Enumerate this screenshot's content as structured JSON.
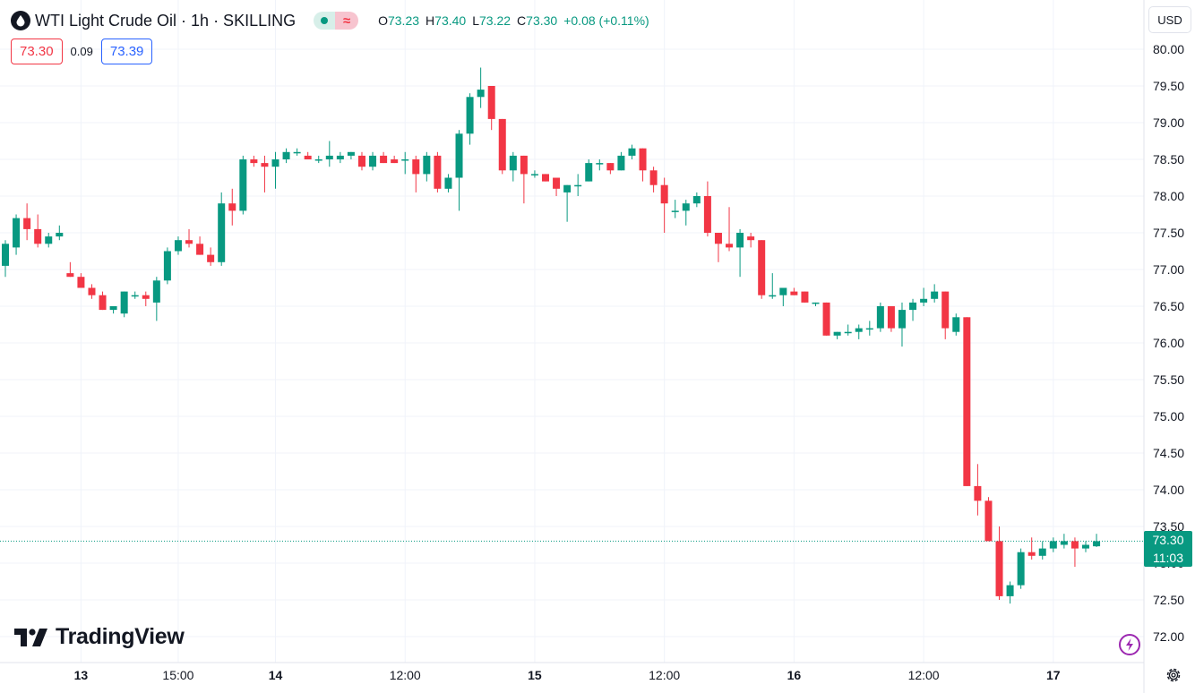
{
  "header": {
    "title": "WTI Light Crude Oil · 1h · SKILLING",
    "approx_symbol": "≈",
    "ohlc": [
      {
        "k": "O",
        "v": "73.23"
      },
      {
        "k": "H",
        "v": "73.40"
      },
      {
        "k": "L",
        "v": "73.22"
      },
      {
        "k": "C",
        "v": "73.30"
      },
      {
        "k": "",
        "v": "+0.08 (+0.11%)"
      }
    ]
  },
  "quotes": {
    "bid": "73.30",
    "spread": "0.09",
    "ask": "73.39"
  },
  "currency": "USD",
  "last_price": {
    "price": "73.30",
    "countdown": "11:03"
  },
  "logo": {
    "text": "TradingView"
  },
  "icons": {
    "lightning": "lightning-icon",
    "settings": "gear-icon",
    "symbol": "drop-icon"
  },
  "colors": {
    "up": "#089981",
    "down": "#f23645",
    "grid": "#f0f3fa",
    "text": "#131722"
  },
  "chart_data": {
    "type": "candlestick",
    "y_ticks": [
      "80.00",
      "79.50",
      "79.00",
      "78.50",
      "78.00",
      "77.50",
      "77.00",
      "76.50",
      "76.00",
      "75.50",
      "75.00",
      "74.50",
      "74.00",
      "73.50",
      "73.00",
      "72.50",
      "72.00"
    ],
    "ylim": [
      71.8,
      80.3
    ],
    "x_ticks": [
      {
        "label": "13",
        "bold": true,
        "index": 7
      },
      {
        "label": "15:00",
        "bold": false,
        "index": 16
      },
      {
        "label": "14",
        "bold": true,
        "index": 25
      },
      {
        "label": "12:00",
        "bold": false,
        "index": 37
      },
      {
        "label": "15",
        "bold": true,
        "index": 49
      },
      {
        "label": "12:00",
        "bold": false,
        "index": 61
      },
      {
        "label": "16",
        "bold": true,
        "index": 73
      },
      {
        "label": "12:00",
        "bold": false,
        "index": 85
      },
      {
        "label": "17",
        "bold": true,
        "index": 97
      }
    ],
    "last_price": 73.3,
    "candles": [
      [
        77.05,
        77.4,
        76.9,
        77.35
      ],
      [
        77.3,
        77.75,
        77.2,
        77.7
      ],
      [
        77.7,
        77.9,
        77.4,
        77.55
      ],
      [
        77.55,
        77.75,
        77.3,
        77.35
      ],
      [
        77.35,
        77.5,
        77.3,
        77.45
      ],
      [
        77.45,
        77.6,
        77.4,
        77.5
      ],
      [
        76.95,
        77.1,
        76.9,
        76.9
      ],
      [
        76.9,
        76.95,
        76.75,
        76.75
      ],
      [
        76.75,
        76.8,
        76.6,
        76.65
      ],
      [
        76.65,
        76.7,
        76.45,
        76.45
      ],
      [
        76.45,
        76.5,
        76.4,
        76.5
      ],
      [
        76.4,
        76.7,
        76.35,
        76.7
      ],
      [
        76.65,
        76.7,
        76.6,
        76.65
      ],
      [
        76.65,
        76.7,
        76.5,
        76.6
      ],
      [
        76.55,
        76.9,
        76.3,
        76.85
      ],
      [
        76.85,
        77.3,
        76.8,
        77.25
      ],
      [
        77.25,
        77.45,
        77.2,
        77.4
      ],
      [
        77.4,
        77.55,
        77.3,
        77.35
      ],
      [
        77.35,
        77.45,
        77.2,
        77.2
      ],
      [
        77.2,
        77.3,
        77.05,
        77.1
      ],
      [
        77.1,
        78.05,
        77.05,
        77.9
      ],
      [
        77.9,
        78.1,
        77.6,
        77.8
      ],
      [
        77.8,
        78.55,
        77.75,
        78.5
      ],
      [
        78.5,
        78.55,
        78.4,
        78.45
      ],
      [
        78.45,
        78.55,
        78.05,
        78.4
      ],
      [
        78.4,
        78.6,
        78.1,
        78.5
      ],
      [
        78.5,
        78.65,
        78.45,
        78.6
      ],
      [
        78.6,
        78.65,
        78.55,
        78.6
      ],
      [
        78.55,
        78.6,
        78.5,
        78.5
      ],
      [
        78.5,
        78.55,
        78.45,
        78.5
      ],
      [
        78.5,
        78.75,
        78.4,
        78.55
      ],
      [
        78.5,
        78.6,
        78.45,
        78.55
      ],
      [
        78.55,
        78.6,
        78.5,
        78.6
      ],
      [
        78.55,
        78.6,
        78.35,
        78.4
      ],
      [
        78.4,
        78.6,
        78.35,
        78.55
      ],
      [
        78.55,
        78.6,
        78.45,
        78.45
      ],
      [
        78.5,
        78.55,
        78.45,
        78.45
      ],
      [
        78.5,
        78.6,
        78.3,
        78.5
      ],
      [
        78.5,
        78.55,
        78.05,
        78.3
      ],
      [
        78.3,
        78.6,
        78.2,
        78.55
      ],
      [
        78.55,
        78.6,
        78.05,
        78.1
      ],
      [
        78.1,
        78.3,
        78.05,
        78.25
      ],
      [
        78.25,
        78.9,
        77.8,
        78.85
      ],
      [
        78.85,
        79.4,
        78.7,
        79.35
      ],
      [
        79.35,
        79.75,
        79.2,
        79.45
      ],
      [
        79.5,
        79.5,
        78.9,
        79.05
      ],
      [
        79.05,
        79.05,
        78.3,
        78.35
      ],
      [
        78.35,
        78.6,
        78.2,
        78.55
      ],
      [
        78.55,
        78.55,
        77.9,
        78.3
      ],
      [
        78.3,
        78.35,
        78.25,
        78.3
      ],
      [
        78.3,
        78.3,
        78.2,
        78.2
      ],
      [
        78.25,
        78.25,
        78.0,
        78.1
      ],
      [
        78.05,
        78.15,
        77.65,
        78.15
      ],
      [
        78.15,
        78.3,
        78.0,
        78.15
      ],
      [
        78.2,
        78.5,
        78.2,
        78.45
      ],
      [
        78.45,
        78.5,
        78.35,
        78.45
      ],
      [
        78.45,
        78.45,
        78.3,
        78.35
      ],
      [
        78.35,
        78.6,
        78.35,
        78.55
      ],
      [
        78.55,
        78.7,
        78.5,
        78.65
      ],
      [
        78.65,
        78.65,
        78.2,
        78.35
      ],
      [
        78.35,
        78.4,
        78.05,
        78.15
      ],
      [
        78.15,
        78.25,
        77.5,
        77.9
      ],
      [
        77.8,
        77.95,
        77.7,
        77.8
      ],
      [
        77.8,
        77.95,
        77.6,
        77.9
      ],
      [
        77.9,
        78.05,
        77.85,
        78.0
      ],
      [
        78.0,
        78.2,
        77.45,
        77.5
      ],
      [
        77.5,
        77.5,
        77.1,
        77.35
      ],
      [
        77.35,
        77.85,
        77.25,
        77.3
      ],
      [
        77.3,
        77.55,
        76.9,
        77.5
      ],
      [
        77.45,
        77.5,
        77.3,
        77.4
      ],
      [
        77.4,
        77.4,
        76.6,
        76.65
      ],
      [
        76.65,
        76.95,
        76.6,
        76.65
      ],
      [
        76.65,
        76.75,
        76.5,
        76.75
      ],
      [
        76.7,
        76.75,
        76.65,
        76.65
      ],
      [
        76.7,
        76.7,
        76.55,
        76.55
      ],
      [
        76.55,
        76.55,
        76.5,
        76.55
      ],
      [
        76.55,
        76.55,
        76.1,
        76.1
      ],
      [
        76.1,
        76.15,
        76.05,
        76.15
      ],
      [
        76.15,
        76.25,
        76.1,
        76.15
      ],
      [
        76.15,
        76.25,
        76.05,
        76.2
      ],
      [
        76.2,
        76.3,
        76.1,
        76.2
      ],
      [
        76.2,
        76.55,
        76.15,
        76.5
      ],
      [
        76.5,
        76.5,
        76.15,
        76.2
      ],
      [
        76.2,
        76.55,
        75.95,
        76.45
      ],
      [
        76.45,
        76.6,
        76.3,
        76.55
      ],
      [
        76.55,
        76.75,
        76.5,
        76.6
      ],
      [
        76.6,
        76.8,
        76.55,
        76.7
      ],
      [
        76.7,
        76.7,
        76.05,
        76.2
      ],
      [
        76.15,
        76.4,
        76.1,
        76.35
      ],
      [
        76.35,
        76.35,
        74.05,
        74.05
      ],
      [
        74.05,
        74.35,
        73.65,
        73.85
      ],
      [
        73.85,
        73.9,
        73.3,
        73.3
      ],
      [
        73.3,
        73.5,
        72.5,
        72.55
      ],
      [
        72.55,
        72.75,
        72.45,
        72.7
      ],
      [
        72.7,
        73.2,
        72.65,
        73.15
      ],
      [
        73.15,
        73.35,
        73.05,
        73.1
      ],
      [
        73.1,
        73.3,
        73.05,
        73.2
      ],
      [
        73.2,
        73.35,
        73.15,
        73.3
      ],
      [
        73.25,
        73.4,
        73.2,
        73.3
      ],
      [
        73.3,
        73.35,
        72.95,
        73.2
      ],
      [
        73.2,
        73.3,
        73.15,
        73.25
      ],
      [
        73.23,
        73.4,
        73.22,
        73.3
      ]
    ]
  }
}
